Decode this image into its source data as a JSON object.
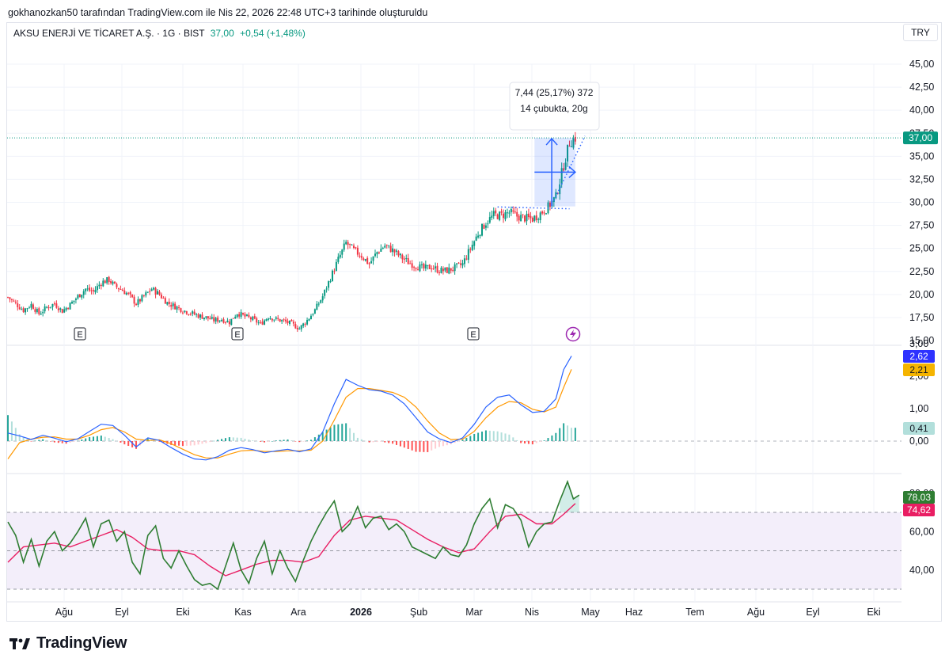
{
  "caption": "gokhanozkan50 tarafından TradingView.com ile Nis 22, 2026 22:48 UTC+3 tarihinde oluşturuldu",
  "symbol": {
    "name": "AKSU ENERJİ VE TİCARET A.Ş. · 1G · BIST",
    "last": "37,00",
    "change": "+0,54 (+1,48%)"
  },
  "currency": "TRY",
  "brand": "TradingView",
  "colors": {
    "up": "#089981",
    "down": "#f23645",
    "macd_line": "#2962ff",
    "signal_line": "#ff9800",
    "rsi_line": "#2e7d32",
    "rsi_ma": "#e91e63",
    "rsi_band": "#f3eefa",
    "measure": "#2962ff"
  },
  "chart_data": [
    {
      "type": "candlestick",
      "yaxis_ticks": [
        "45,00",
        "42,50",
        "40,00",
        "37,50",
        "35,00",
        "32,50",
        "30,00",
        "27,50",
        "25,00",
        "22,50",
        "20,00",
        "17,50",
        "15,00"
      ],
      "ylim": [
        15,
        45
      ],
      "x_labels": [
        "Ağu",
        "Eyl",
        "Eki",
        "Kas",
        "Ara",
        "2026",
        "Şub",
        "Mar",
        "Nis",
        "May",
        "Haz",
        "Tem",
        "Ağu",
        "Eyl",
        "Eki"
      ],
      "last_price_label": "37,00",
      "last_price": 37.0,
      "earnings_markers": [
        "E",
        "E",
        "E"
      ],
      "measure": {
        "line1": "7,44 (25,17%) 372",
        "line2": "14 çubukta, 20g",
        "from": 29.56,
        "to": 37.0
      },
      "close_path": [
        [
          0,
          19.7
        ],
        [
          4,
          19.0
        ],
        [
          8,
          18.3
        ],
        [
          12,
          18.9
        ],
        [
          16,
          17.9
        ],
        [
          20,
          18.6
        ],
        [
          24,
          19.0
        ],
        [
          28,
          18.2
        ],
        [
          32,
          18.9
        ],
        [
          36,
          19.8
        ],
        [
          40,
          20.6
        ],
        [
          44,
          20.3
        ],
        [
          48,
          21.3
        ],
        [
          52,
          21.6
        ],
        [
          55,
          20.9
        ],
        [
          58,
          20.6
        ],
        [
          62,
          20.0
        ],
        [
          66,
          19.0
        ],
        [
          70,
          19.8
        ],
        [
          74,
          20.6
        ],
        [
          78,
          20.0
        ],
        [
          82,
          19.1
        ],
        [
          86,
          18.7
        ],
        [
          90,
          18.3
        ],
        [
          94,
          18.0
        ],
        [
          98,
          17.7
        ],
        [
          102,
          17.5
        ],
        [
          106,
          17.2
        ],
        [
          110,
          17.3
        ],
        [
          114,
          17.0
        ],
        [
          118,
          18.0
        ],
        [
          122,
          17.6
        ],
        [
          126,
          17.3
        ],
        [
          130,
          16.8
        ],
        [
          134,
          17.6
        ],
        [
          138,
          17.3
        ],
        [
          142,
          17.1
        ],
        [
          146,
          16.8
        ],
        [
          150,
          16.3
        ],
        [
          154,
          17.2
        ],
        [
          158,
          18.3
        ],
        [
          162,
          19.8
        ],
        [
          166,
          21.8
        ],
        [
          170,
          23.8
        ],
        [
          174,
          25.6
        ],
        [
          178,
          24.8
        ],
        [
          182,
          24.2
        ],
        [
          186,
          23.3
        ],
        [
          190,
          24.6
        ],
        [
          194,
          25.3
        ],
        [
          198,
          24.8
        ],
        [
          202,
          24.1
        ],
        [
          206,
          23.5
        ],
        [
          210,
          23.1
        ],
        [
          214,
          22.8
        ],
        [
          218,
          23.0
        ],
        [
          222,
          22.6
        ],
        [
          226,
          22.6
        ],
        [
          230,
          22.9
        ],
        [
          234,
          23.3
        ],
        [
          238,
          25.0
        ],
        [
          242,
          26.6
        ],
        [
          246,
          27.8
        ],
        [
          250,
          28.6
        ],
        [
          254,
          28.6
        ],
        [
          258,
          28.9
        ],
        [
          262,
          28.5
        ],
        [
          266,
          28.3
        ],
        [
          270,
          28.2
        ],
        [
          274,
          28.8
        ],
        [
          278,
          29.5
        ],
        [
          282,
          30.6
        ],
        [
          286,
          34.0
        ],
        [
          289,
          36.5
        ],
        [
          292,
          37.0
        ]
      ]
    },
    {
      "type": "macd",
      "yaxis_ticks": [
        "3,00",
        "2,00",
        "1,00",
        "0,00"
      ],
      "ylim": [
        -0.75,
        3.0
      ],
      "labels": {
        "macd": "2,62",
        "signal": "2,21",
        "histogram": "0,41"
      },
      "macd": [
        [
          0,
          0.25
        ],
        [
          6,
          0.16
        ],
        [
          12,
          0.05
        ],
        [
          18,
          0.18
        ],
        [
          24,
          0.09
        ],
        [
          30,
          -0.02
        ],
        [
          36,
          0.07
        ],
        [
          42,
          0.3
        ],
        [
          48,
          0.52
        ],
        [
          54,
          0.48
        ],
        [
          60,
          0.18
        ],
        [
          66,
          -0.18
        ],
        [
          72,
          0.1
        ],
        [
          78,
          0.02
        ],
        [
          84,
          -0.2
        ],
        [
          90,
          -0.4
        ],
        [
          96,
          -0.55
        ],
        [
          102,
          -0.58
        ],
        [
          108,
          -0.48
        ],
        [
          114,
          -0.28
        ],
        [
          120,
          -0.2
        ],
        [
          126,
          -0.26
        ],
        [
          132,
          -0.36
        ],
        [
          138,
          -0.3
        ],
        [
          144,
          -0.25
        ],
        [
          150,
          -0.33
        ],
        [
          156,
          -0.24
        ],
        [
          162,
          0.28
        ],
        [
          168,
          1.15
        ],
        [
          174,
          1.9
        ],
        [
          180,
          1.72
        ],
        [
          186,
          1.58
        ],
        [
          192,
          1.54
        ],
        [
          198,
          1.42
        ],
        [
          204,
          1.15
        ],
        [
          210,
          0.72
        ],
        [
          216,
          0.28
        ],
        [
          222,
          0.07
        ],
        [
          228,
          -0.05
        ],
        [
          234,
          0.1
        ],
        [
          240,
          0.52
        ],
        [
          246,
          1.05
        ],
        [
          252,
          1.35
        ],
        [
          258,
          1.42
        ],
        [
          264,
          1.12
        ],
        [
          270,
          0.88
        ],
        [
          276,
          0.92
        ],
        [
          282,
          1.3
        ],
        [
          286,
          2.2
        ],
        [
          290,
          2.62
        ]
      ],
      "signal": [
        [
          0,
          -0.55
        ],
        [
          6,
          -0.05
        ],
        [
          12,
          0.06
        ],
        [
          18,
          0.12
        ],
        [
          24,
          0.13
        ],
        [
          30,
          0.06
        ],
        [
          36,
          0.06
        ],
        [
          42,
          0.18
        ],
        [
          48,
          0.35
        ],
        [
          54,
          0.42
        ],
        [
          60,
          0.28
        ],
        [
          66,
          0.06
        ],
        [
          72,
          0.02
        ],
        [
          78,
          0.04
        ],
        [
          84,
          -0.08
        ],
        [
          90,
          -0.25
        ],
        [
          96,
          -0.42
        ],
        [
          102,
          -0.52
        ],
        [
          108,
          -0.52
        ],
        [
          114,
          -0.4
        ],
        [
          120,
          -0.3
        ],
        [
          126,
          -0.28
        ],
        [
          132,
          -0.32
        ],
        [
          138,
          -0.32
        ],
        [
          144,
          -0.3
        ],
        [
          150,
          -0.3
        ],
        [
          156,
          -0.28
        ],
        [
          162,
          0.0
        ],
        [
          168,
          0.65
        ],
        [
          174,
          1.35
        ],
        [
          180,
          1.62
        ],
        [
          186,
          1.62
        ],
        [
          192,
          1.56
        ],
        [
          198,
          1.5
        ],
        [
          204,
          1.35
        ],
        [
          210,
          1.05
        ],
        [
          216,
          0.62
        ],
        [
          222,
          0.25
        ],
        [
          228,
          0.05
        ],
        [
          234,
          0.06
        ],
        [
          240,
          0.3
        ],
        [
          246,
          0.72
        ],
        [
          252,
          1.05
        ],
        [
          258,
          1.22
        ],
        [
          264,
          1.18
        ],
        [
          270,
          0.98
        ],
        [
          276,
          0.9
        ],
        [
          282,
          1.05
        ],
        [
          286,
          1.65
        ],
        [
          290,
          2.21
        ]
      ]
    },
    {
      "type": "rsi",
      "yaxis_ticks": [
        "80,00",
        "60,00",
        "40,00"
      ],
      "ylim": [
        28,
        89
      ],
      "band": [
        30,
        70
      ],
      "labels": {
        "rsi": "78,03",
        "rsi_ma": "74,62"
      },
      "rsi": [
        [
          0,
          65
        ],
        [
          4,
          58
        ],
        [
          8,
          44
        ],
        [
          12,
          56
        ],
        [
          16,
          42
        ],
        [
          20,
          55
        ],
        [
          24,
          60
        ],
        [
          28,
          50
        ],
        [
          32,
          54
        ],
        [
          36,
          60
        ],
        [
          40,
          67
        ],
        [
          44,
          52
        ],
        [
          48,
          64
        ],
        [
          52,
          66
        ],
        [
          56,
          55
        ],
        [
          60,
          60
        ],
        [
          64,
          44
        ],
        [
          68,
          38
        ],
        [
          72,
          58
        ],
        [
          76,
          63
        ],
        [
          80,
          46
        ],
        [
          84,
          41
        ],
        [
          88,
          50
        ],
        [
          92,
          42
        ],
        [
          96,
          35
        ],
        [
          100,
          32
        ],
        [
          104,
          33
        ],
        [
          108,
          30
        ],
        [
          112,
          42
        ],
        [
          116,
          54
        ],
        [
          120,
          40
        ],
        [
          124,
          33
        ],
        [
          128,
          46
        ],
        [
          132,
          55
        ],
        [
          136,
          38
        ],
        [
          140,
          50
        ],
        [
          144,
          41
        ],
        [
          148,
          34
        ],
        [
          152,
          45
        ],
        [
          156,
          55
        ],
        [
          160,
          63
        ],
        [
          164,
          70
        ],
        [
          168,
          76
        ],
        [
          172,
          60
        ],
        [
          176,
          64
        ],
        [
          180,
          73
        ],
        [
          184,
          62
        ],
        [
          188,
          67
        ],
        [
          192,
          68
        ],
        [
          196,
          61
        ],
        [
          200,
          64
        ],
        [
          204,
          60
        ],
        [
          208,
          52
        ],
        [
          212,
          50
        ],
        [
          216,
          48
        ],
        [
          220,
          46
        ],
        [
          224,
          52
        ],
        [
          228,
          48
        ],
        [
          232,
          47
        ],
        [
          236,
          53
        ],
        [
          240,
          64
        ],
        [
          244,
          72
        ],
        [
          248,
          77
        ],
        [
          252,
          62
        ],
        [
          256,
          74
        ],
        [
          260,
          72
        ],
        [
          264,
          66
        ],
        [
          268,
          52
        ],
        [
          272,
          60
        ],
        [
          276,
          64
        ],
        [
          280,
          65
        ],
        [
          284,
          76
        ],
        [
          288,
          86
        ],
        [
          291,
          77
        ],
        [
          294,
          79
        ]
      ],
      "rsi_ma": [
        [
          0,
          44
        ],
        [
          8,
          52
        ],
        [
          16,
          53
        ],
        [
          24,
          54
        ],
        [
          32,
          52
        ],
        [
          40,
          55
        ],
        [
          48,
          58
        ],
        [
          56,
          61
        ],
        [
          64,
          57
        ],
        [
          72,
          51
        ],
        [
          80,
          50
        ],
        [
          88,
          50
        ],
        [
          96,
          48
        ],
        [
          104,
          42
        ],
        [
          112,
          37
        ],
        [
          120,
          40
        ],
        [
          128,
          43
        ],
        [
          136,
          45
        ],
        [
          144,
          45
        ],
        [
          152,
          44
        ],
        [
          160,
          47
        ],
        [
          168,
          58
        ],
        [
          176,
          66
        ],
        [
          184,
          68
        ],
        [
          192,
          67
        ],
        [
          200,
          66
        ],
        [
          208,
          61
        ],
        [
          216,
          56
        ],
        [
          224,
          52
        ],
        [
          232,
          49
        ],
        [
          240,
          51
        ],
        [
          248,
          60
        ],
        [
          256,
          68
        ],
        [
          264,
          69
        ],
        [
          272,
          64
        ],
        [
          280,
          64
        ],
        [
          286,
          69
        ],
        [
          292,
          74.6
        ]
      ]
    }
  ]
}
